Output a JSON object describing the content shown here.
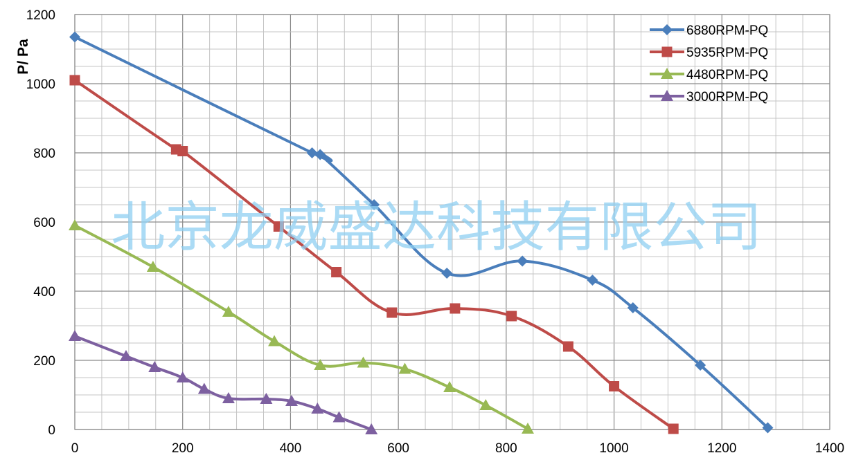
{
  "chart_data": {
    "type": "line",
    "title": "",
    "xlabel": "",
    "ylabel": "P/ Pa",
    "xlim": [
      0,
      1400
    ],
    "ylim": [
      0,
      1200
    ],
    "x_ticks": [
      0,
      200,
      400,
      600,
      800,
      1000,
      1200,
      1400
    ],
    "y_ticks": [
      0,
      200,
      400,
      600,
      800,
      1000,
      1200
    ],
    "grid": true,
    "legend_position": "top-right",
    "watermark": "北京龙威盛达科技有限公司",
    "series": [
      {
        "name": "6880RPM-PQ",
        "color": "#4a7ebb",
        "marker": "diamond",
        "points": [
          [
            0,
            1135
          ],
          [
            440,
            800
          ],
          [
            455,
            795
          ],
          [
            555,
            650
          ],
          [
            690,
            452
          ],
          [
            830,
            487
          ],
          [
            960,
            432
          ],
          [
            1035,
            352
          ],
          [
            1160,
            186
          ],
          [
            1285,
            5
          ]
        ]
      },
      {
        "name": "5935RPM-PQ",
        "color": "#be4b48",
        "marker": "square",
        "points": [
          [
            0,
            1010
          ],
          [
            188,
            810
          ],
          [
            200,
            805
          ],
          [
            378,
            587
          ],
          [
            485,
            455
          ],
          [
            588,
            338
          ],
          [
            705,
            350
          ],
          [
            810,
            328
          ],
          [
            915,
            240
          ],
          [
            1000,
            125
          ],
          [
            1110,
            2
          ]
        ]
      },
      {
        "name": "4480RPM-PQ",
        "color": "#98b954",
        "marker": "triangle",
        "points": [
          [
            0,
            590
          ],
          [
            145,
            470
          ],
          [
            285,
            340
          ],
          [
            370,
            255
          ],
          [
            455,
            186
          ],
          [
            535,
            193
          ],
          [
            612,
            175
          ],
          [
            695,
            122
          ],
          [
            762,
            70
          ],
          [
            840,
            2
          ]
        ]
      },
      {
        "name": "3000RPM-PQ",
        "color": "#7d60a0",
        "marker": "triangle",
        "points": [
          [
            0,
            270
          ],
          [
            95,
            212
          ],
          [
            148,
            180
          ],
          [
            200,
            150
          ],
          [
            240,
            117
          ],
          [
            285,
            90
          ],
          [
            355,
            88
          ],
          [
            402,
            82
          ],
          [
            450,
            60
          ],
          [
            490,
            35
          ],
          [
            550,
            0
          ]
        ]
      }
    ]
  }
}
